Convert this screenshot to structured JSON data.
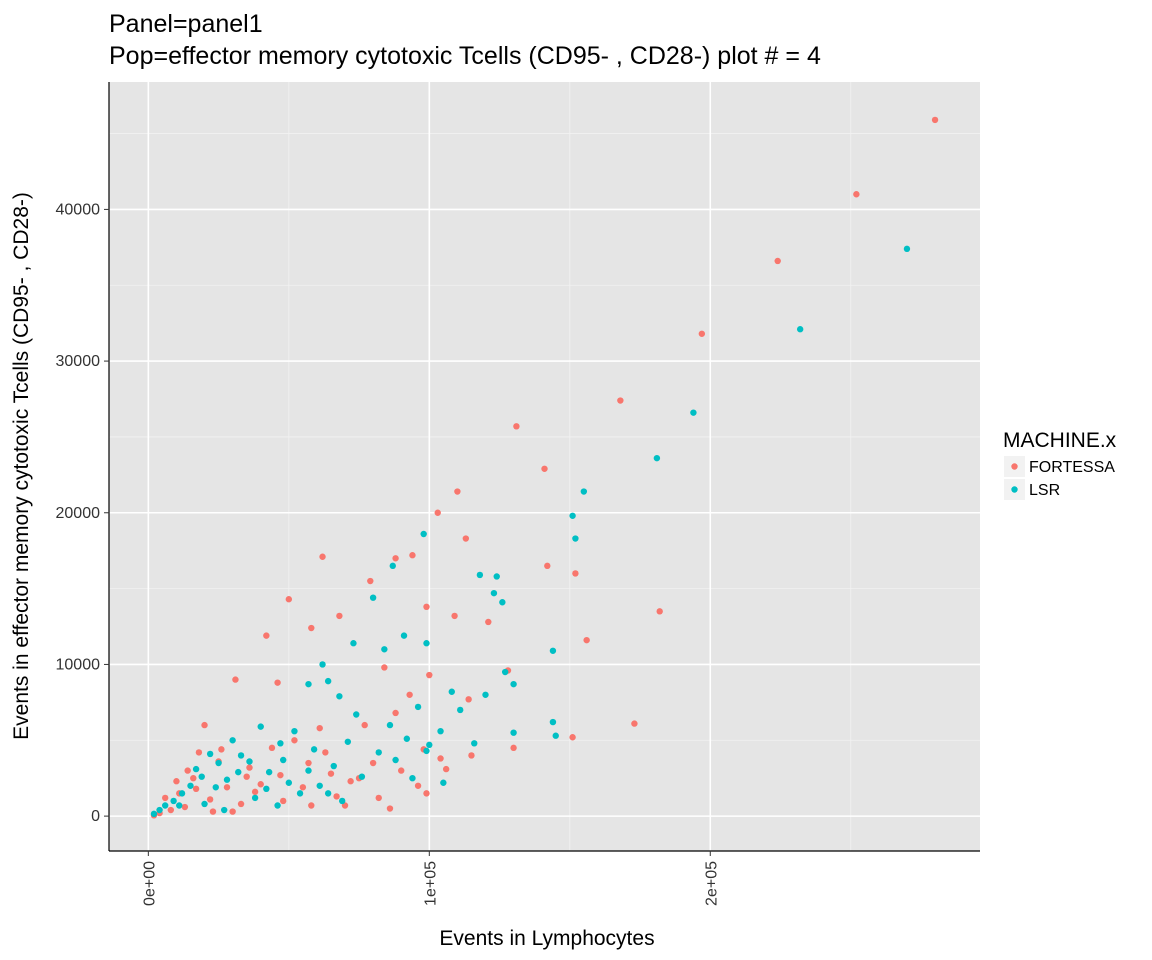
{
  "chart_data": {
    "type": "scatter",
    "title": "Panel=panel1",
    "subtitle": "Pop=effector memory cytotoxic Tcells (CD95- , CD28-) plot # = 4",
    "xlabel": "Events in Lymphocytes",
    "ylabel": "Events in effector memory cytotoxic Tcells (CD95- , CD28-)",
    "xlim": [
      -14000,
      296000
    ],
    "ylim": [
      -2300,
      48400
    ],
    "x_ticks": [
      0,
      100000,
      200000
    ],
    "x_tick_labels": [
      "0e+00",
      "1e+05",
      "2e+05"
    ],
    "y_ticks": [
      0,
      10000,
      20000,
      30000,
      40000
    ],
    "y_tick_labels": [
      "0",
      "10000",
      "20000",
      "30000",
      "40000"
    ],
    "grid": true,
    "legend_position": "right",
    "legend": {
      "title": "MACHINE.x",
      "entries": [
        {
          "name": "FORTESSA",
          "color": "#F8766D"
        },
        {
          "name": "LSR",
          "color": "#00BFC4"
        }
      ]
    },
    "series": [
      {
        "name": "FORTESSA",
        "color": "#F8766D",
        "points": [
          [
            280000,
            45900
          ],
          [
            252000,
            41000
          ],
          [
            224000,
            36600
          ],
          [
            197000,
            31800
          ],
          [
            168000,
            27400
          ],
          [
            131000,
            25700
          ],
          [
            141000,
            22900
          ],
          [
            110000,
            21400
          ],
          [
            103000,
            20000
          ],
          [
            113000,
            18300
          ],
          [
            94000,
            17200
          ],
          [
            62000,
            17100
          ],
          [
            142000,
            16500
          ],
          [
            152000,
            16000
          ],
          [
            121000,
            12800
          ],
          [
            182000,
            13500
          ],
          [
            156000,
            11600
          ],
          [
            173000,
            6100
          ],
          [
            99000,
            13800
          ],
          [
            50000,
            14300
          ],
          [
            79000,
            15500
          ],
          [
            88000,
            17000
          ],
          [
            68000,
            13200
          ],
          [
            109000,
            13200
          ],
          [
            42000,
            11900
          ],
          [
            46000,
            8800
          ],
          [
            31000,
            9000
          ],
          [
            58000,
            12400
          ],
          [
            84000,
            9800
          ],
          [
            128000,
            9600
          ],
          [
            114000,
            7700
          ],
          [
            130000,
            4500
          ],
          [
            151000,
            5200
          ],
          [
            20000,
            6000
          ],
          [
            18000,
            4200
          ],
          [
            14000,
            3000
          ],
          [
            10000,
            2300
          ],
          [
            6000,
            1200
          ],
          [
            25000,
            3600
          ],
          [
            35000,
            2600
          ],
          [
            44000,
            4500
          ],
          [
            52000,
            5000
          ],
          [
            57000,
            3500
          ],
          [
            63000,
            4200
          ],
          [
            72000,
            2300
          ],
          [
            80000,
            3500
          ],
          [
            90000,
            3000
          ],
          [
            98000,
            4400
          ],
          [
            106000,
            3100
          ],
          [
            93000,
            8000
          ],
          [
            100000,
            9300
          ],
          [
            77000,
            6000
          ],
          [
            88000,
            6800
          ],
          [
            38000,
            1600
          ],
          [
            48000,
            1000
          ],
          [
            58000,
            700
          ],
          [
            67000,
            1300
          ],
          [
            75000,
            2500
          ],
          [
            86000,
            500
          ],
          [
            99000,
            1500
          ],
          [
            30000,
            300
          ],
          [
            22000,
            1100
          ],
          [
            13000,
            600
          ],
          [
            8000,
            400
          ],
          [
            4000,
            200
          ],
          [
            2000,
            50
          ],
          [
            28000,
            1900
          ],
          [
            33000,
            800
          ],
          [
            17000,
            1800
          ],
          [
            11000,
            1500
          ],
          [
            40000,
            2100
          ],
          [
            55000,
            1900
          ],
          [
            65000,
            2800
          ],
          [
            70000,
            700
          ],
          [
            82000,
            1200
          ],
          [
            115000,
            4000
          ],
          [
            104000,
            3800
          ],
          [
            96000,
            2000
          ],
          [
            26000,
            4400
          ],
          [
            16000,
            2500
          ],
          [
            23000,
            300
          ],
          [
            36000,
            3200
          ],
          [
            61000,
            5800
          ],
          [
            47000,
            2700
          ]
        ]
      },
      {
        "name": "LSR",
        "color": "#00BFC4",
        "points": [
          [
            270000,
            37400
          ],
          [
            232000,
            32100
          ],
          [
            194000,
            26600
          ],
          [
            181000,
            23600
          ],
          [
            155000,
            21400
          ],
          [
            151000,
            19800
          ],
          [
            152000,
            18300
          ],
          [
            98000,
            18600
          ],
          [
            118000,
            15900
          ],
          [
            124000,
            15800
          ],
          [
            87000,
            16500
          ],
          [
            126000,
            14100
          ],
          [
            123000,
            14700
          ],
          [
            99000,
            11400
          ],
          [
            91000,
            11900
          ],
          [
            80000,
            14400
          ],
          [
            84000,
            11000
          ],
          [
            73000,
            11400
          ],
          [
            62000,
            10000
          ],
          [
            127000,
            9500
          ],
          [
            130000,
            8700
          ],
          [
            144000,
            10900
          ],
          [
            120000,
            8000
          ],
          [
            108000,
            8200
          ],
          [
            130000,
            5500
          ],
          [
            144000,
            6200
          ],
          [
            145000,
            5300
          ],
          [
            116000,
            4800
          ],
          [
            104000,
            5600
          ],
          [
            111000,
            7000
          ],
          [
            57000,
            8700
          ],
          [
            64000,
            8900
          ],
          [
            68000,
            7900
          ],
          [
            74000,
            6700
          ],
          [
            86000,
            6000
          ],
          [
            92000,
            5100
          ],
          [
            99000,
            4300
          ],
          [
            105000,
            2200
          ],
          [
            96000,
            7200
          ],
          [
            40000,
            5900
          ],
          [
            47000,
            4800
          ],
          [
            52000,
            5600
          ],
          [
            57000,
            3000
          ],
          [
            30000,
            5000
          ],
          [
            33000,
            4000
          ],
          [
            25000,
            3500
          ],
          [
            19000,
            2600
          ],
          [
            15000,
            2000
          ],
          [
            12000,
            1500
          ],
          [
            9000,
            1000
          ],
          [
            6000,
            700
          ],
          [
            4000,
            400
          ],
          [
            2000,
            150
          ],
          [
            28000,
            2400
          ],
          [
            36000,
            3600
          ],
          [
            43000,
            2900
          ],
          [
            50000,
            2200
          ],
          [
            61000,
            2000
          ],
          [
            66000,
            3300
          ],
          [
            76000,
            2600
          ],
          [
            88000,
            3700
          ],
          [
            94000,
            2500
          ],
          [
            20000,
            800
          ],
          [
            27000,
            400
          ],
          [
            38000,
            1200
          ],
          [
            46000,
            700
          ],
          [
            54000,
            1500
          ],
          [
            69000,
            1000
          ],
          [
            17000,
            3100
          ],
          [
            22000,
            4100
          ],
          [
            32000,
            2900
          ],
          [
            42000,
            1800
          ],
          [
            59000,
            4400
          ],
          [
            71000,
            4900
          ],
          [
            82000,
            4200
          ],
          [
            100000,
            4700
          ],
          [
            11000,
            700
          ],
          [
            24000,
            1900
          ],
          [
            48000,
            3700
          ],
          [
            64000,
            1500
          ]
        ]
      }
    ]
  }
}
